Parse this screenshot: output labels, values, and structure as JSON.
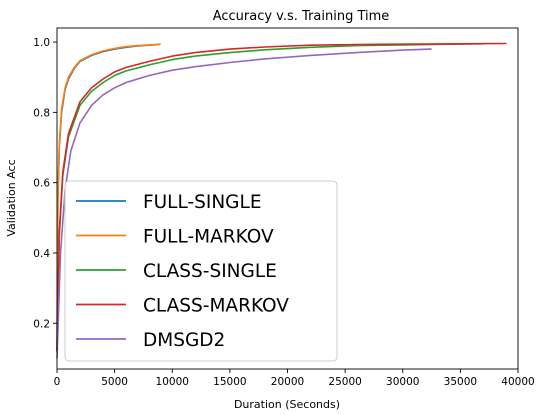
{
  "chart_data": {
    "type": "line",
    "title": "Accuracy v.s. Training Time",
    "xlabel": "Duration (Seconds)",
    "ylabel": "Validation Acc",
    "xlim": [
      0,
      40000
    ],
    "ylim": [
      0.07,
      1.04
    ],
    "xticks": [
      0,
      5000,
      10000,
      15000,
      20000,
      25000,
      30000,
      35000,
      40000
    ],
    "xtick_labels": [
      "0",
      "5000",
      "10000",
      "15000",
      "20000",
      "25000",
      "30000",
      "35000",
      "40000"
    ],
    "yticks": [
      0.2,
      0.4,
      0.6,
      0.8,
      1.0
    ],
    "ytick_labels": [
      "0.2",
      "0.4",
      "0.6",
      "0.8",
      "1.0"
    ],
    "grid": false,
    "legend_position": "bottom-left",
    "series": [
      {
        "name": "FULL-SINGLE",
        "color": "#1f77b4",
        "points": [
          [
            0,
            0.12
          ],
          [
            80,
            0.55
          ],
          [
            200,
            0.7
          ],
          [
            400,
            0.8
          ],
          [
            700,
            0.865
          ],
          [
            1000,
            0.895
          ],
          [
            1500,
            0.925
          ],
          [
            2000,
            0.945
          ],
          [
            3000,
            0.962
          ],
          [
            4000,
            0.973
          ],
          [
            5000,
            0.98
          ],
          [
            6000,
            0.985
          ],
          [
            7000,
            0.989
          ],
          [
            8000,
            0.991
          ],
          [
            8900,
            0.993
          ]
        ]
      },
      {
        "name": "FULL-MARKOV",
        "color": "#ff7f0e",
        "points": [
          [
            0,
            0.12
          ],
          [
            80,
            0.56
          ],
          [
            200,
            0.71
          ],
          [
            400,
            0.81
          ],
          [
            700,
            0.87
          ],
          [
            1000,
            0.9
          ],
          [
            1500,
            0.928
          ],
          [
            2000,
            0.947
          ],
          [
            3000,
            0.964
          ],
          [
            4000,
            0.975
          ],
          [
            5000,
            0.982
          ],
          [
            6000,
            0.987
          ],
          [
            7000,
            0.99
          ],
          [
            8000,
            0.992
          ],
          [
            9000,
            0.994
          ]
        ]
      },
      {
        "name": "CLASS-SINGLE",
        "color": "#2ca02c",
        "points": [
          [
            0,
            0.12
          ],
          [
            200,
            0.45
          ],
          [
            500,
            0.62
          ],
          [
            1000,
            0.73
          ],
          [
            2000,
            0.82
          ],
          [
            3000,
            0.86
          ],
          [
            4000,
            0.885
          ],
          [
            5000,
            0.905
          ],
          [
            6000,
            0.918
          ],
          [
            8000,
            0.935
          ],
          [
            10000,
            0.95
          ],
          [
            12000,
            0.96
          ],
          [
            15000,
            0.97
          ],
          [
            18000,
            0.978
          ],
          [
            22000,
            0.985
          ],
          [
            26000,
            0.99
          ],
          [
            30000,
            0.992
          ],
          [
            34000,
            0.994
          ],
          [
            37000,
            0.995
          ]
        ]
      },
      {
        "name": "CLASS-MARKOV",
        "color": "#d62728",
        "points": [
          [
            0,
            0.12
          ],
          [
            200,
            0.46
          ],
          [
            500,
            0.63
          ],
          [
            1000,
            0.74
          ],
          [
            2000,
            0.83
          ],
          [
            3000,
            0.87
          ],
          [
            4000,
            0.895
          ],
          [
            5000,
            0.915
          ],
          [
            6000,
            0.928
          ],
          [
            8000,
            0.945
          ],
          [
            10000,
            0.96
          ],
          [
            12000,
            0.97
          ],
          [
            15000,
            0.98
          ],
          [
            18000,
            0.986
          ],
          [
            22000,
            0.991
          ],
          [
            26000,
            0.993
          ],
          [
            30000,
            0.994
          ],
          [
            35000,
            0.995
          ],
          [
            39000,
            0.996
          ]
        ]
      },
      {
        "name": "DMSGD2",
        "color": "#9467bd",
        "points": [
          [
            0,
            0.1
          ],
          [
            300,
            0.4
          ],
          [
            700,
            0.58
          ],
          [
            1200,
            0.69
          ],
          [
            2000,
            0.77
          ],
          [
            3000,
            0.82
          ],
          [
            4000,
            0.85
          ],
          [
            5000,
            0.87
          ],
          [
            6000,
            0.885
          ],
          [
            8000,
            0.905
          ],
          [
            10000,
            0.92
          ],
          [
            12000,
            0.93
          ],
          [
            15000,
            0.942
          ],
          [
            18000,
            0.952
          ],
          [
            22000,
            0.962
          ],
          [
            26000,
            0.97
          ],
          [
            30000,
            0.977
          ],
          [
            32500,
            0.98
          ]
        ]
      }
    ]
  }
}
